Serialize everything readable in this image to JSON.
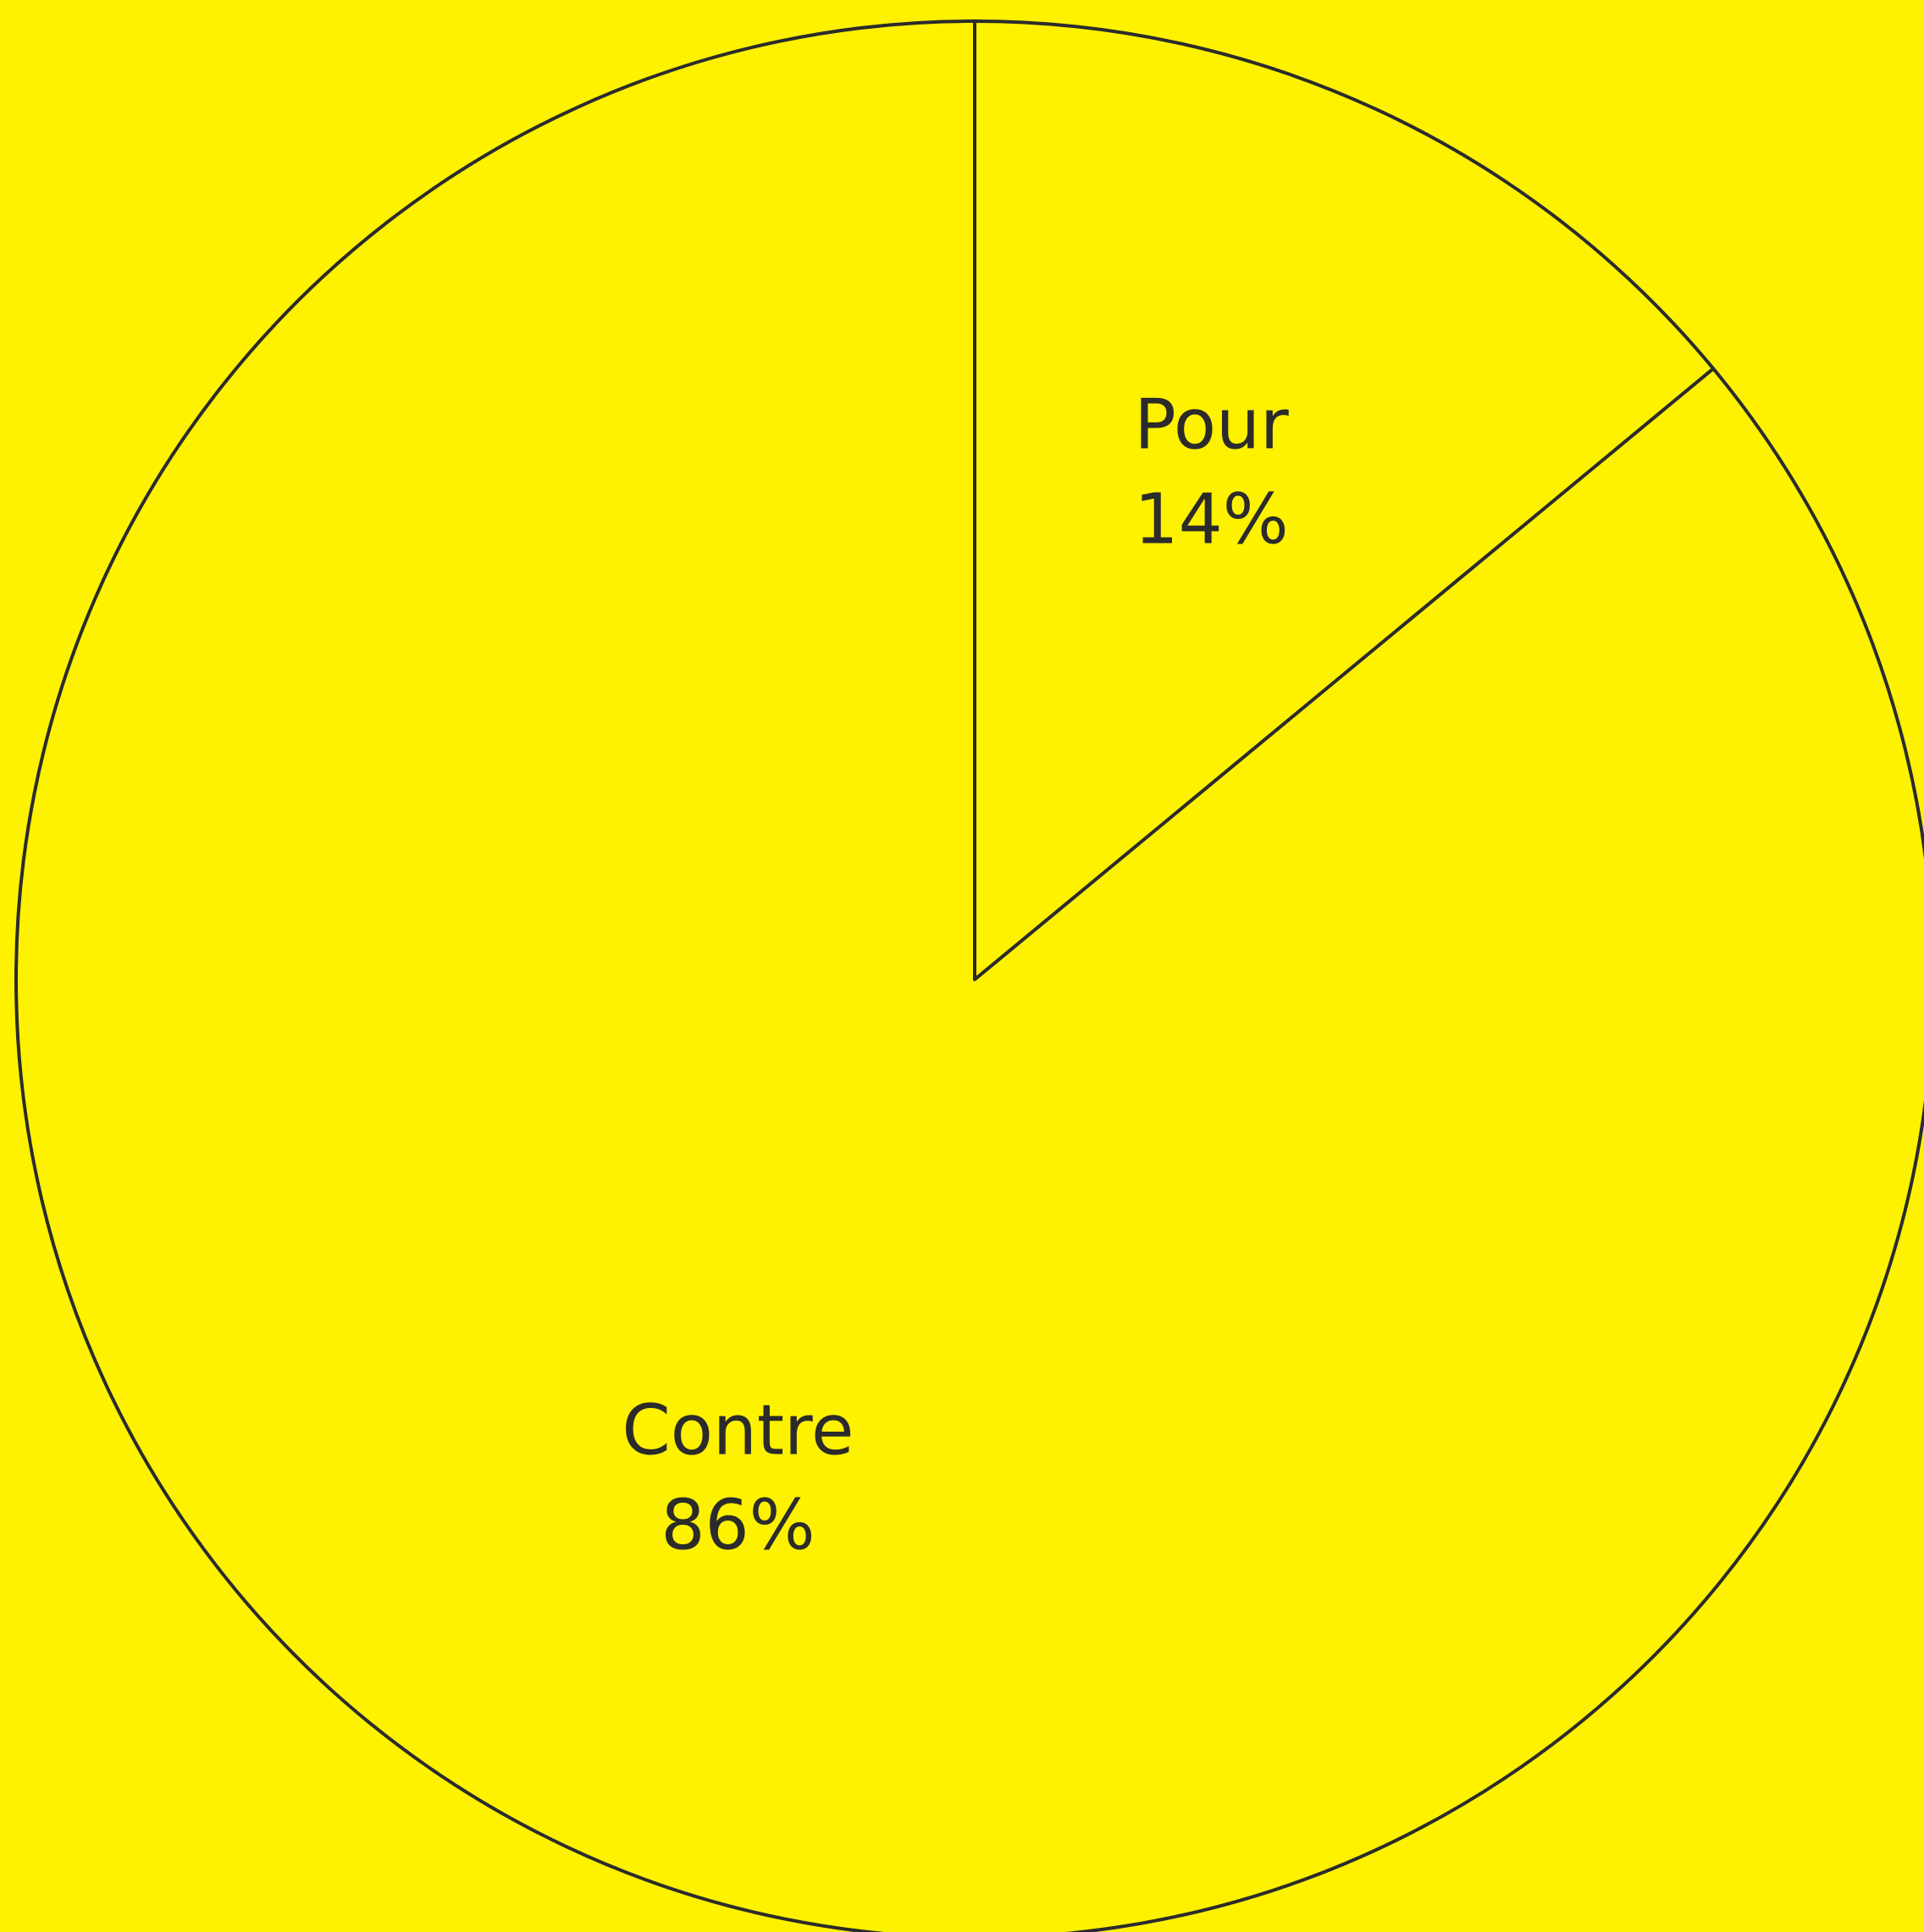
{
  "chart_data": {
    "type": "pie",
    "categories": [
      "Pour",
      "Contre"
    ],
    "values": [
      14,
      86
    ],
    "value_labels": [
      "14%",
      "86%"
    ],
    "colors": [
      "#fff200",
      "#fff200"
    ]
  }
}
